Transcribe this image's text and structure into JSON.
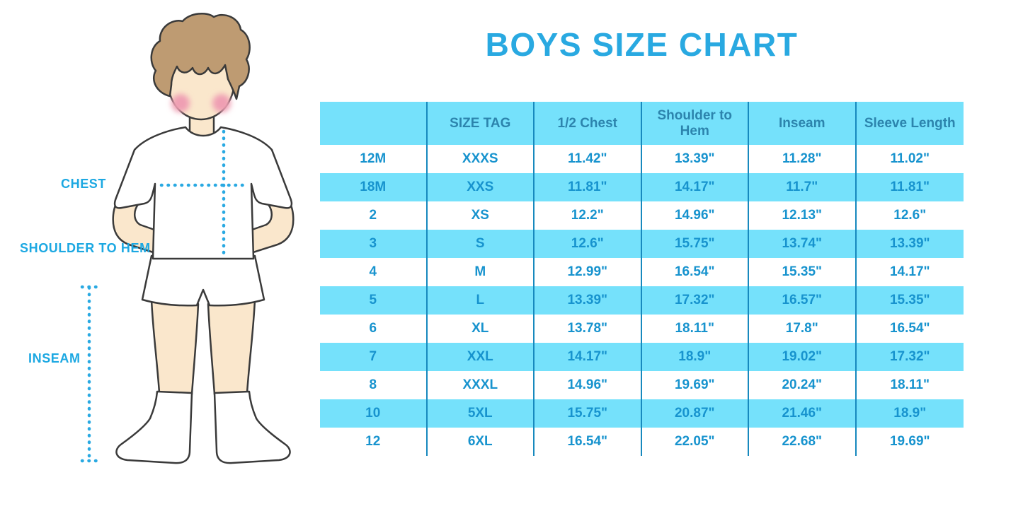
{
  "title": "BOYS SIZE CHART",
  "colors": {
    "title_blue": "#29a9e1",
    "cyan": "#75e1fb",
    "divider": "#1789be",
    "header_text": "#2c84ad",
    "cell_text": "#1793ce",
    "label_blue": "#1ca8e2"
  },
  "figure": {
    "description": "boy-illustration-with-measurement-lines",
    "labels": [
      {
        "text": "CHEST"
      },
      {
        "text": "SHOULDER TO HEM"
      },
      {
        "text": "INSEAM"
      }
    ]
  },
  "chart_data": {
    "type": "table",
    "title": "BOYS SIZE CHART",
    "columns": [
      "",
      "SIZE TAG",
      "1/2 Chest",
      "Shoulder to Hem",
      "Inseam",
      "Sleeve Length"
    ],
    "rows": [
      [
        "12M",
        "XXXS",
        "11.42\"",
        "13.39\"",
        "11.28\"",
        "11.02\""
      ],
      [
        "18M",
        "XXS",
        "11.81\"",
        "14.17\"",
        "11.7\"",
        "11.81\""
      ],
      [
        "2",
        "XS",
        "12.2\"",
        "14.96\"",
        "12.13\"",
        "12.6\""
      ],
      [
        "3",
        "S",
        "12.6\"",
        "15.75\"",
        "13.74\"",
        "13.39\""
      ],
      [
        "4",
        "M",
        "12.99\"",
        "16.54\"",
        "15.35\"",
        "14.17\""
      ],
      [
        "5",
        "L",
        "13.39\"",
        "17.32\"",
        "16.57\"",
        "15.35\""
      ],
      [
        "6",
        "XL",
        "13.78\"",
        "18.11\"",
        "17.8\"",
        "16.54\""
      ],
      [
        "7",
        "XXL",
        "14.17\"",
        "18.9\"",
        "19.02\"",
        "17.32\""
      ],
      [
        "8",
        "XXXL",
        "14.96\"",
        "19.69\"",
        "20.24\"",
        "18.11\""
      ],
      [
        "10",
        "5XL",
        "15.75\"",
        "20.87\"",
        "21.46\"",
        "18.9\""
      ],
      [
        "12",
        "6XL",
        "16.54\"",
        "22.05\"",
        "22.68\"",
        "19.69\""
      ]
    ],
    "layout": {
      "header_background": "#75e1fb",
      "zebra_striping": "rows 18M,3,5,7,10 cyan; others white",
      "column_dividers": "vertical 2px #1789be, no outer border"
    }
  }
}
